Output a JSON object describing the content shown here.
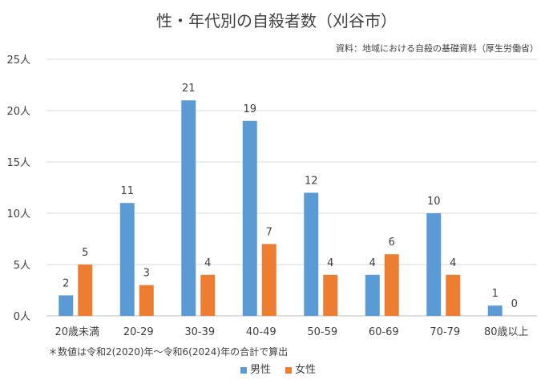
{
  "chart_data": {
    "type": "bar",
    "title": "性・年代別の自殺者数（刈谷市）",
    "source": "資料：地域における自殺の基礎資料（厚生労働省）",
    "footnote": "＊数値は令和2(2020)年～令和6(2024)年の合計で算出",
    "categories": [
      "20歳未満",
      "20-29",
      "30-39",
      "40-49",
      "50-59",
      "60-69",
      "70-79",
      "80歳以上"
    ],
    "series": [
      {
        "name": "男性",
        "color": "#5b9bd5",
        "values": [
          2,
          11,
          21,
          19,
          12,
          4,
          10,
          1
        ]
      },
      {
        "name": "女性",
        "color": "#ed7d31",
        "values": [
          5,
          3,
          4,
          7,
          4,
          6,
          4,
          0
        ]
      }
    ],
    "ylim": [
      0,
      25
    ],
    "yticks": [
      "0人",
      "5人",
      "10人",
      "15人",
      "20人",
      "25人"
    ],
    "grid": true,
    "legend": "bottom"
  }
}
